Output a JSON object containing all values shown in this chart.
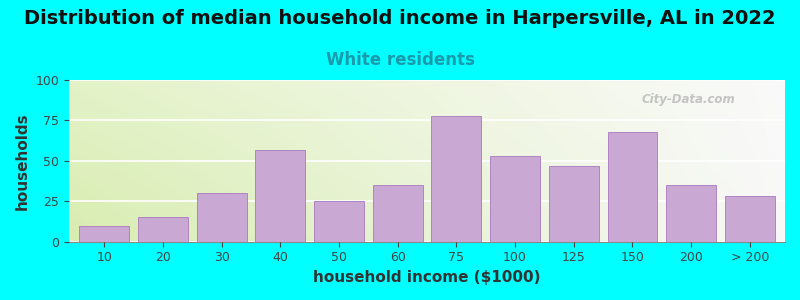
{
  "title": "Distribution of median household income in Harpersville, AL in 2022",
  "subtitle": "White residents",
  "xlabel": "household income ($1000)",
  "ylabel": "households",
  "background_color": "#00FFFF",
  "bar_color": "#C9A8D4",
  "bar_edge_color": "#A878C0",
  "categories": [
    "10",
    "20",
    "30",
    "40",
    "50",
    "60",
    "75",
    "100",
    "125",
    "150",
    "200",
    "> 200"
  ],
  "values": [
    10,
    15,
    30,
    57,
    25,
    35,
    78,
    53,
    47,
    68,
    35,
    28
  ],
  "ylim": [
    0,
    100
  ],
  "yticks": [
    0,
    25,
    50,
    75,
    100
  ],
  "title_fontsize": 14,
  "subtitle_fontsize": 12,
  "subtitle_color": "#1A9AAA",
  "axis_label_fontsize": 11,
  "tick_fontsize": 9,
  "watermark_text": "City-Data.com",
  "chart_bg_gradient_left": "#D8EDB0",
  "chart_bg_gradient_right": "#F8F8F8"
}
